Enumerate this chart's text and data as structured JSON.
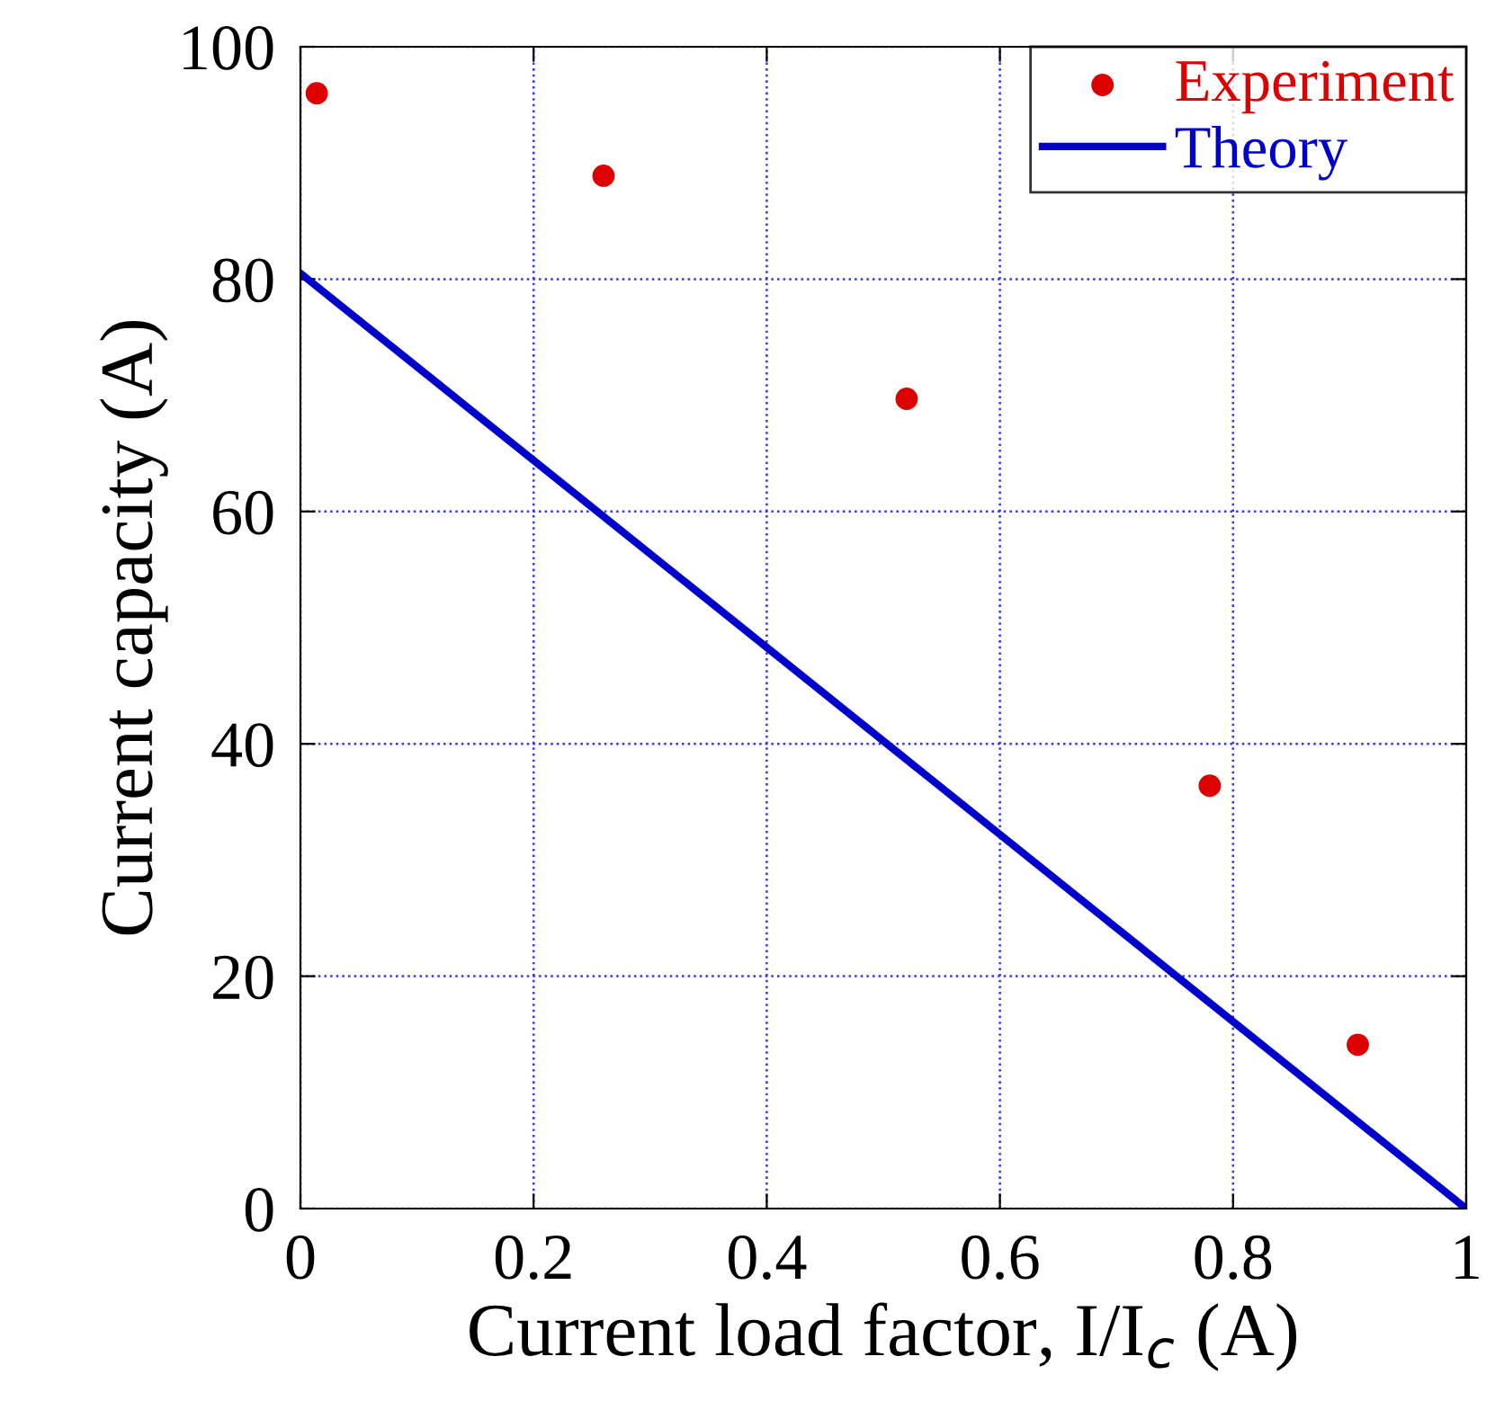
{
  "chart_data": {
    "type": "scatter",
    "xlabel": "Current load factor, I/I$_{c}$ (A)",
    "ylabel": "Current capacity (A)",
    "series": [
      {
        "name": "Experiment",
        "color": "#dd0000",
        "x": [
          0.014,
          0.26,
          0.52,
          0.78,
          0.907
        ],
        "values": [
          96,
          88.9,
          69.7,
          36.4,
          14.1
        ],
        "marker": "circle"
      },
      {
        "name": "Theory",
        "type": "line",
        "color": "#0000cc",
        "x": [
          0,
          1
        ],
        "values": [
          80.5,
          0
        ],
        "marker": "none",
        "line_style": "solid"
      }
    ],
    "xlim": [
      0,
      1
    ],
    "ylim": [
      0,
      100
    ],
    "xticks": [
      0,
      0.2,
      0.4,
      0.6,
      0.8,
      1
    ],
    "yticks": [
      0,
      20,
      40,
      60,
      80,
      100
    ],
    "grid": true,
    "legend": "top right"
  }
}
